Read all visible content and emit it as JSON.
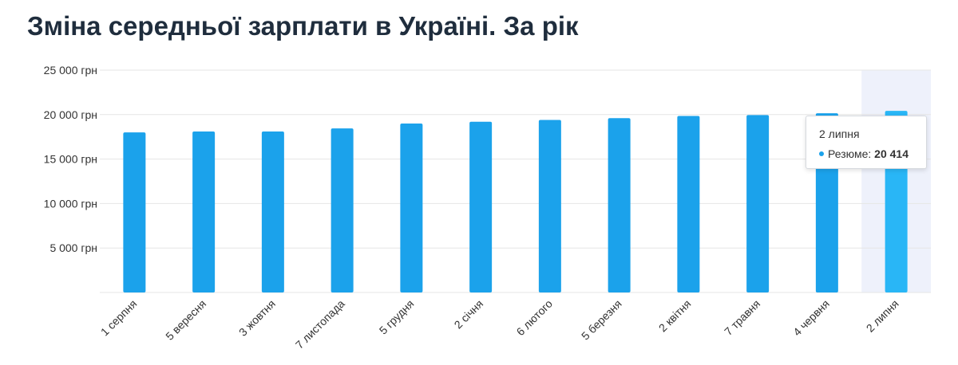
{
  "title": "Зміна середньої зарплати в Україні. За рік",
  "chart_data": {
    "type": "bar",
    "categories": [
      "1 серпня",
      "5 вересня",
      "3 жовтня",
      "7 листопада",
      "5 грудня",
      "2 січня",
      "6 лютого",
      "5 березня",
      "2 квітня",
      "7 травня",
      "4 червня",
      "2 липня"
    ],
    "series": [
      {
        "name": "Резюме",
        "values": [
          18000,
          18100,
          18100,
          18450,
          19000,
          19200,
          19400,
          19600,
          19850,
          19950,
          20150,
          20414
        ]
      }
    ],
    "ylim": [
      0,
      25000
    ],
    "yticks": [
      {
        "value": 5000,
        "label": "5 000 грн"
      },
      {
        "value": 10000,
        "label": "10 000 грн"
      },
      {
        "value": 15000,
        "label": "15 000 грн"
      },
      {
        "value": 20000,
        "label": "20 000 грн"
      },
      {
        "value": 25000,
        "label": "25 000 грн"
      }
    ],
    "grid": true,
    "highlighted_index": 11,
    "colors": {
      "bar": "#1ba2eb",
      "bar_highlight": "#29b6f6",
      "highlight_band": "#eef1fb",
      "grid": "#e6e6e6",
      "axis_text": "#333333"
    }
  },
  "tooltip": {
    "date": "2 липня",
    "series_label": "Резюме:",
    "value": "20 414"
  }
}
